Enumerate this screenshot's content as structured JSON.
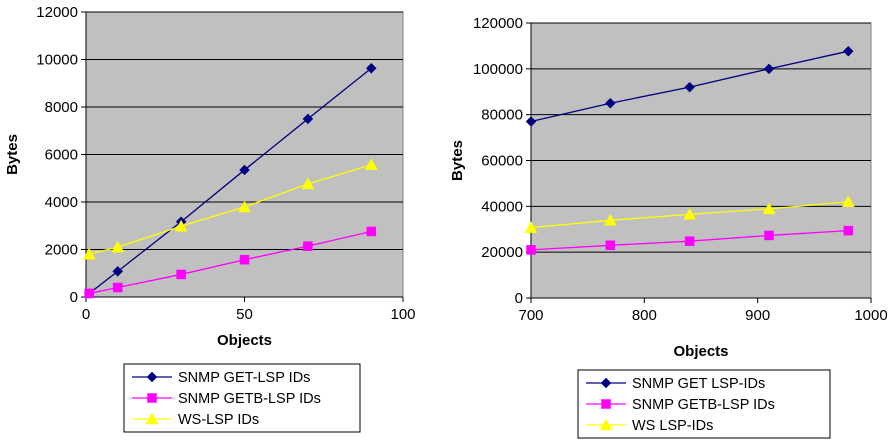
{
  "chart_data": [
    {
      "type": "line",
      "xlabel": "Objects",
      "ylabel": "Bytes",
      "xlim": [
        0,
        100
      ],
      "ylim": [
        0,
        12000
      ],
      "xticks": [
        "0",
        "50",
        "100"
      ],
      "yticks": [
        "0",
        "2000",
        "4000",
        "6000",
        "8000",
        "10000",
        "12000"
      ],
      "grid": true,
      "background": "#c0c0c0",
      "legend_position": "bottom",
      "series": [
        {
          "name": "SNMP GET-LSP IDs",
          "color": "#000080",
          "marker": "diamond",
          "points": [
            [
              1,
              150
            ],
            [
              10,
              1080
            ],
            [
              30,
              3170
            ],
            [
              50,
              5350
            ],
            [
              70,
              7500
            ],
            [
              90,
              9630
            ]
          ]
        },
        {
          "name": "SNMP GETB-LSP IDs",
          "color": "#ff00ff",
          "marker": "square",
          "points": [
            [
              1,
              150
            ],
            [
              10,
              400
            ],
            [
              30,
              950
            ],
            [
              50,
              1570
            ],
            [
              70,
              2140
            ],
            [
              90,
              2760
            ]
          ]
        },
        {
          "name": "WS-LSP IDs",
          "color": "#ffff00",
          "marker": "triangle",
          "points": [
            [
              1,
              1800
            ],
            [
              10,
              2100
            ],
            [
              30,
              2980
            ],
            [
              50,
              3790
            ],
            [
              70,
              4760
            ],
            [
              90,
              5570
            ]
          ]
        }
      ]
    },
    {
      "type": "line",
      "xlabel": "Objects",
      "ylabel": "Bytes",
      "xlim": [
        700,
        1000
      ],
      "ylim": [
        0,
        120000
      ],
      "xticks": [
        "700",
        "800",
        "900",
        "1000"
      ],
      "yticks": [
        "0",
        "20000",
        "40000",
        "60000",
        "80000",
        "100000",
        "120000"
      ],
      "grid": true,
      "background": "#c0c0c0",
      "legend_position": "bottom",
      "series": [
        {
          "name": "SNMP GET LSP-IDs",
          "color": "#000080",
          "marker": "diamond",
          "points": [
            [
              700,
              77000
            ],
            [
              770,
              85000
            ],
            [
              840,
              92000
            ],
            [
              910,
              100000
            ],
            [
              980,
              107700
            ]
          ]
        },
        {
          "name": "SNMP GETB-LSP IDs",
          "color": "#ff00ff",
          "marker": "square",
          "points": [
            [
              700,
              21000
            ],
            [
              770,
              23000
            ],
            [
              840,
              24800
            ],
            [
              910,
              27300
            ],
            [
              980,
              29400
            ]
          ]
        },
        {
          "name": "WS LSP-IDs",
          "color": "#ffff00",
          "marker": "triangle",
          "points": [
            [
              700,
              30700
            ],
            [
              770,
              33900
            ],
            [
              840,
              36500
            ],
            [
              910,
              38900
            ],
            [
              980,
              42000
            ]
          ]
        }
      ]
    }
  ]
}
